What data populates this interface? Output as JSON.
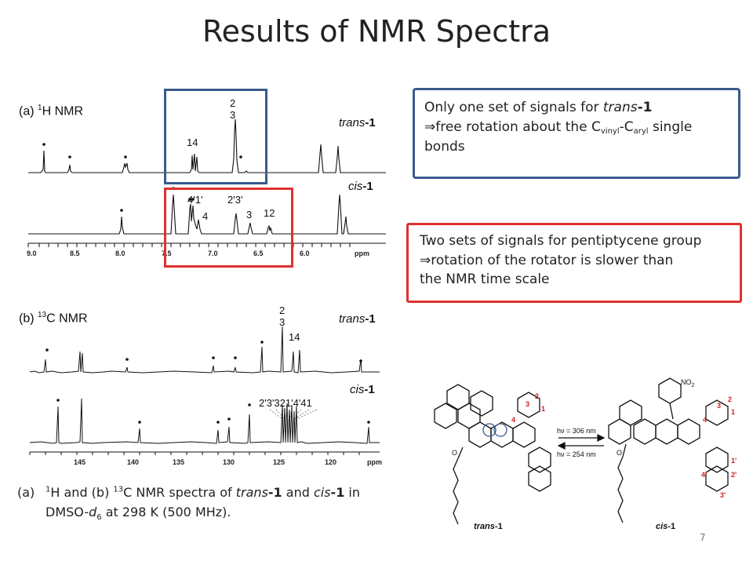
{
  "slide": {
    "title": "Results of NMR Spectra",
    "page_number": "7"
  },
  "nmr_h": {
    "panel_prefix": "(a) ",
    "nucleus_mass": "1",
    "nucleus_label": "H NMR",
    "trans_italic": "trans",
    "trans_num": "-1",
    "cis_italic": "cis",
    "cis_num": "-1",
    "axis_ticks": [
      "9.0",
      "8.5",
      "8.0",
      "7.5",
      "7.0",
      "6.5",
      "6.0"
    ],
    "axis_unit": "ppm",
    "trans_labels": {
      "l23a": "2",
      "l23b": "3",
      "l14": "14"
    },
    "cis_labels": {
      "l41": "4'1'",
      "l2p3p": "2'3'",
      "l4": "4",
      "l3": "3",
      "l12": "12"
    }
  },
  "nmr_c": {
    "panel_prefix": "(b) ",
    "nucleus_mass": "13",
    "nucleus_label": "C NMR",
    "trans_italic": "trans",
    "trans_num": "-1",
    "cis_italic": "cis",
    "cis_num": "-1",
    "axis_ticks": [
      "145",
      "140",
      "135",
      "130",
      "125",
      "120"
    ],
    "axis_unit": "ppm",
    "trans_labels": {
      "l23a": "2",
      "l23b": "3",
      "l14": "14"
    },
    "cis_labels": {
      "all": "2'3'321'4'41"
    }
  },
  "blue_box": {
    "line1_pre": "Only one set of signals for ",
    "line1_italic": "trans",
    "line1_bold": "-1",
    "arrow": "⇒",
    "line2_pre": "free rotation about the C",
    "sub1": "vinyl",
    "dash": "-C",
    "sub2": "aryl",
    "line2_post": " single",
    "line3": "bonds"
  },
  "red_box": {
    "line1": "Two sets of signals for pentiptycene group",
    "arrow": "⇒",
    "line2": "rotation of the rotator is slower than",
    "line3": "the NMR time scale"
  },
  "caption": {
    "prefix": "(a)",
    "sup1": "1",
    "t1": "H and (b) ",
    "sup2": "13",
    "t2": "C NMR spectra of ",
    "i1": "trans",
    "b1": "-1",
    "t3": " and ",
    "i2": "cis",
    "b2": "-1",
    "t4": " in",
    "t5": "DMSO-",
    "i3": "d",
    "sub6": "6",
    "t6": " at 298 K (500 MHz)."
  },
  "scheme": {
    "forward": "hν = 306 nm",
    "reverse": "hν = 254 nm",
    "left_label_italic": "trans",
    "left_label_num": "-1",
    "right_label_italic": "cis",
    "right_label_num": "-1",
    "no2": "NO",
    "no2_sub": "2",
    "o_label": "O",
    "nums_left": [
      "2",
      "3",
      "1",
      "4"
    ],
    "nums_right": [
      "2",
      "3",
      "1",
      "4",
      "1'",
      "2'",
      "4'",
      "3'"
    ]
  },
  "colors": {
    "blue_accent": "#3a5a8c",
    "red_accent": "#e03030"
  }
}
